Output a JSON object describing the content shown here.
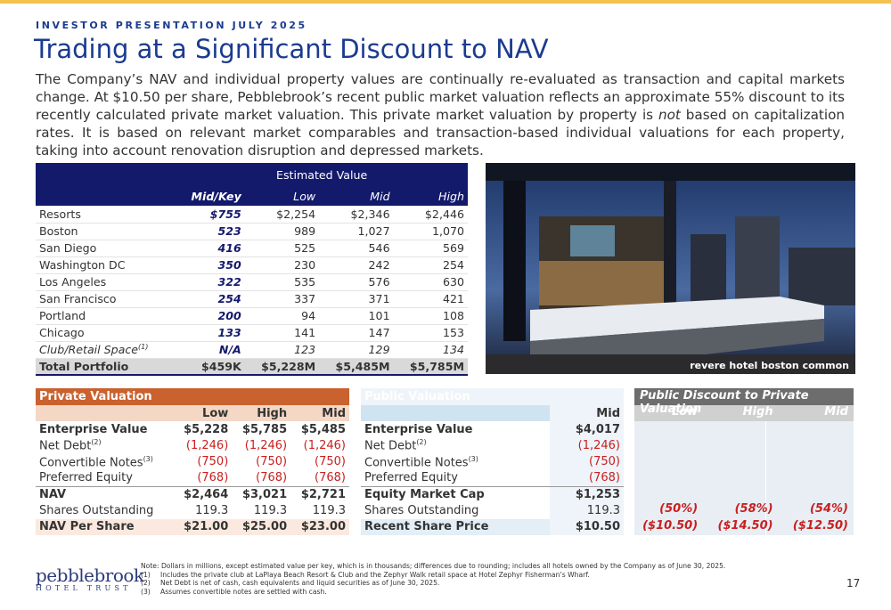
{
  "header": {
    "eyebrow": "INVESTOR PRESENTATION JULY 2025",
    "title": "Trading at a Significant Discount to NAV"
  },
  "intro": {
    "before": "The Company’s NAV and individual property values are continually re-evaluated as transaction and capital markets change. At $10.50 per share, Pebblebrook’s recent public market valuation reflects an approximate 55% discount to its recently calculated private market valuation. This private market valuation by property is ",
    "em": "not",
    "after": " based on capitalization rates. It is based on relevant market comparables and transaction-based individual valuations for each property, taking into account renovation disruption and depressed markets."
  },
  "value_table": {
    "group_header": "Estimated Value",
    "columns": [
      "Mid/Key",
      "Low",
      "Mid",
      "High"
    ],
    "rows": [
      {
        "label": "Resorts",
        "cells": [
          "$755",
          "$2,254",
          "$2,346",
          "$2,446"
        ]
      },
      {
        "label": "Boston",
        "cells": [
          "523",
          "989",
          "1,027",
          "1,070"
        ]
      },
      {
        "label": "San Diego",
        "cells": [
          "416",
          "525",
          "546",
          "569"
        ]
      },
      {
        "label": "Washington DC",
        "cells": [
          "350",
          "230",
          "242",
          "254"
        ]
      },
      {
        "label": "Los Angeles",
        "cells": [
          "322",
          "535",
          "576",
          "630"
        ]
      },
      {
        "label": "San Francisco",
        "cells": [
          "254",
          "337",
          "371",
          "421"
        ]
      },
      {
        "label": "Portland",
        "cells": [
          "200",
          "94",
          "101",
          "108"
        ]
      },
      {
        "label": "Chicago",
        "cells": [
          "133",
          "141",
          "147",
          "153"
        ]
      },
      {
        "label": "Club/Retail Space",
        "ref": "(1)",
        "cells": [
          "N/A",
          "123",
          "129",
          "134"
        ]
      }
    ],
    "total": {
      "label": "Total Portfolio",
      "cells": [
        "$459K",
        "$5,228M",
        "$5,485M",
        "$5,785M"
      ]
    }
  },
  "photo": {
    "caption": "revere hotel boston common"
  },
  "private": {
    "title": "Private Valuation",
    "columns": [
      "Low",
      "High",
      "Mid"
    ],
    "rows": [
      {
        "label": "Enterprise Value",
        "cells": [
          "$5,228",
          "$5,785",
          "$5,485"
        ]
      },
      {
        "label": "Net Debt",
        "ref": "(2)",
        "cells": [
          "(1,246)",
          "(1,246)",
          "(1,246)"
        ]
      },
      {
        "label": "Convertible Notes",
        "ref": "(3)",
        "cells": [
          "(750)",
          "(750)",
          "(750)"
        ]
      },
      {
        "label": "Preferred Equity",
        "cells": [
          "(768)",
          "(768)",
          "(768)"
        ]
      },
      {
        "label": "NAV",
        "cells": [
          "$2,464",
          "$3,021",
          "$2,721"
        ]
      },
      {
        "label": "Shares Outstanding",
        "cells": [
          "119.3",
          "119.3",
          "119.3"
        ]
      },
      {
        "label": "NAV Per Share",
        "cells": [
          "$21.00",
          "$25.00",
          "$23.00"
        ]
      }
    ]
  },
  "public": {
    "title": "Public Valuation",
    "columns": [
      "Mid"
    ],
    "rows": [
      {
        "label": "Enterprise Value",
        "cells": [
          "$4,017"
        ]
      },
      {
        "label": "Net Debt",
        "ref": "(2)",
        "cells": [
          "(1,246)"
        ]
      },
      {
        "label": "Convertible Notes",
        "ref": "(3)",
        "cells": [
          "(750)"
        ]
      },
      {
        "label": "Preferred Equity",
        "cells": [
          "(768)"
        ]
      },
      {
        "label": "Equity Market Cap",
        "cells": [
          "$1,253"
        ]
      },
      {
        "label": "Shares Outstanding",
        "cells": [
          "119.3"
        ]
      },
      {
        "label": "Recent Share Price",
        "cells": [
          "$10.50"
        ]
      }
    ]
  },
  "discount": {
    "title": "Public Discount to Private Valuation",
    "columns": [
      "Low",
      "High",
      "Mid"
    ],
    "rows": [
      [
        "(50%)",
        "(58%)",
        "(54%)"
      ],
      [
        "($10.50)",
        "($14.50)",
        "($12.50)"
      ]
    ]
  },
  "footer": {
    "note": "Note: Dollars in millions, except estimated value per key, which is in thousands; differences due to rounding; includes all hotels owned by the Company as of June 30, 2025.",
    "items": [
      {
        "num": "(1)",
        "text": "Includes the private club at LaPlaya Beach Resort & Club and the Zephyr Walk retail space at Hotel Zephyr Fisherman’s Wharf."
      },
      {
        "num": "(2)",
        "text": "Net Debt is net of cash, cash equivalents and liquid securities as of June 30, 2025."
      },
      {
        "num": "(3)",
        "text": "Assumes convertible notes are settled with cash."
      }
    ],
    "page": "17",
    "logo": {
      "name": "pebblebrook",
      "sub": "HOTEL TRUST"
    }
  }
}
